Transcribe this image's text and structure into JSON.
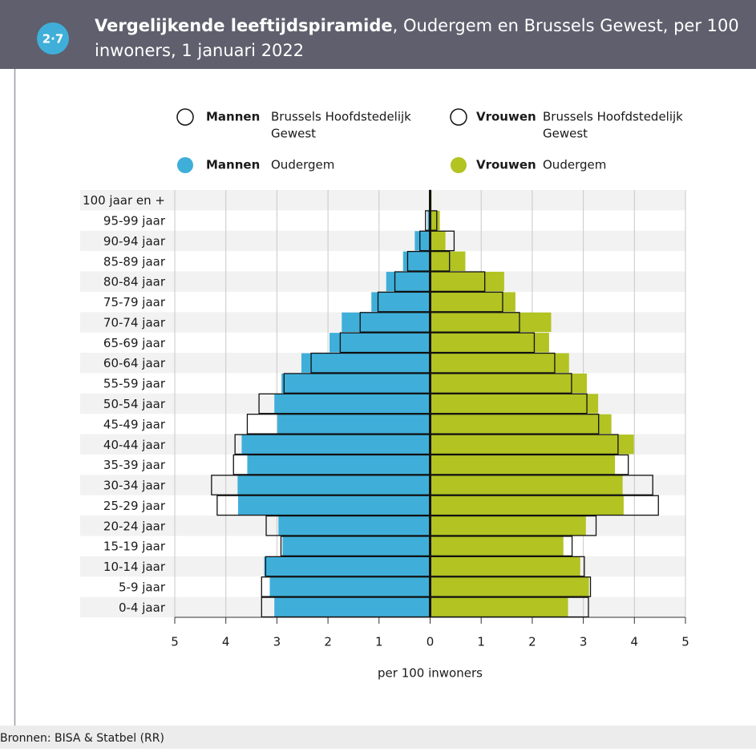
{
  "header": {
    "badge": "2·7",
    "title_bold": "Vergelijkende leeftijdspiramide",
    "title_rest": [
      ", Oudergem en Brussels Gewest, per 100",
      "inwoners, 1 januari 2022"
    ]
  },
  "chart_data": {
    "type": "pyramid",
    "categories": [
      "100 jaar en +",
      "95-99 jaar",
      "90-94 jaar",
      "85-89 jaar",
      "80-84 jaar",
      "75-79 jaar",
      "70-74 jaar",
      "65-69 jaar",
      "60-64 jaar",
      "55-59 jaar",
      "50-54 jaar",
      "45-49 jaar",
      "40-44 jaar",
      "35-39 jaar",
      "30-34 jaar",
      "25-29 jaar",
      "20-24 jaar",
      "15-19 jaar",
      "10-14 jaar",
      "5-9 jaar",
      "0-4 jaar"
    ],
    "series": [
      {
        "name": "Mannen",
        "region": [
          "Oudergem"
        ],
        "color": "#3fafd9",
        "values": [
          0.02,
          0.05,
          0.3,
          0.53,
          0.86,
          1.15,
          1.73,
          1.97,
          2.52,
          2.91,
          3.05,
          2.99,
          3.69,
          3.58,
          3.77,
          3.76,
          2.97,
          2.89,
          3.25,
          3.14,
          3.05
        ]
      },
      {
        "name": "Mannen",
        "region": [
          "Brussels Hoofdstedelijk",
          "Gewest"
        ],
        "color": "none",
        "values": [
          0.01,
          0.09,
          0.2,
          0.44,
          0.69,
          1.02,
          1.37,
          1.76,
          2.33,
          2.86,
          3.35,
          3.58,
          3.82,
          3.85,
          4.28,
          4.17,
          3.21,
          2.92,
          3.22,
          3.3,
          3.3
        ]
      },
      {
        "name": "Vrouwen",
        "region": [
          "Oudergem"
        ],
        "color": "#b2c322",
        "values": [
          0.03,
          0.19,
          0.3,
          0.69,
          1.45,
          1.67,
          2.37,
          2.33,
          2.72,
          3.07,
          3.29,
          3.55,
          3.99,
          3.62,
          3.77,
          3.79,
          3.05,
          2.61,
          2.94,
          3.11,
          2.7
        ]
      },
      {
        "name": "Vrouwen",
        "region": [
          "Brussels Hoofdstedelijk",
          "Gewest"
        ],
        "color": "none",
        "values": [
          0.01,
          0.13,
          0.47,
          0.38,
          1.07,
          1.42,
          1.75,
          2.04,
          2.44,
          2.77,
          3.07,
          3.3,
          3.68,
          3.88,
          4.36,
          4.47,
          3.25,
          2.78,
          3.02,
          3.14,
          3.1
        ]
      }
    ],
    "xlim": [
      -5,
      5
    ],
    "xticks": [
      {
        "value": -5,
        "label": "5"
      },
      {
        "value": -4,
        "label": "4"
      },
      {
        "value": -3,
        "label": "3"
      },
      {
        "value": -2,
        "label": "2"
      },
      {
        "value": -1,
        "label": "1"
      },
      0,
      1,
      2,
      3,
      4,
      5
    ],
    "xlabel": "per 100 inwoners",
    "grid": true
  },
  "footer": {
    "source": "Bronnen: BISA & Statbel (RR)"
  }
}
